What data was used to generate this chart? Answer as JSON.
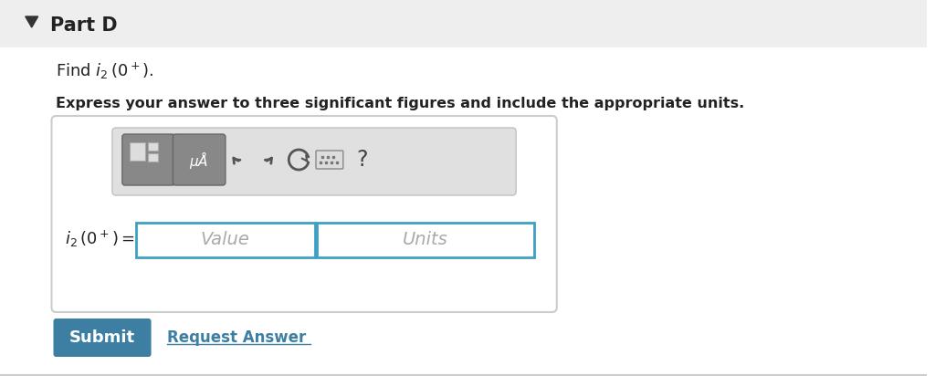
{
  "bg_color": "#f5f5f5",
  "content_bg": "#ffffff",
  "header_bg": "#eeeeee",
  "header_text": "Part D",
  "triangle_color": "#333333",
  "express_text": "Express your answer to three significant figures and include the appropriate units.",
  "value_placeholder": "Value",
  "units_placeholder": "Units",
  "submit_bg": "#3d7fa3",
  "submit_text": "Submit",
  "request_text": "Request Answer",
  "request_color": "#3d7fa3",
  "toolbar_bg": "#e0e0e0",
  "input_border_color": "#3d9fc4",
  "outer_box_border": "#cccccc",
  "outer_box_bg": "#ffffff"
}
